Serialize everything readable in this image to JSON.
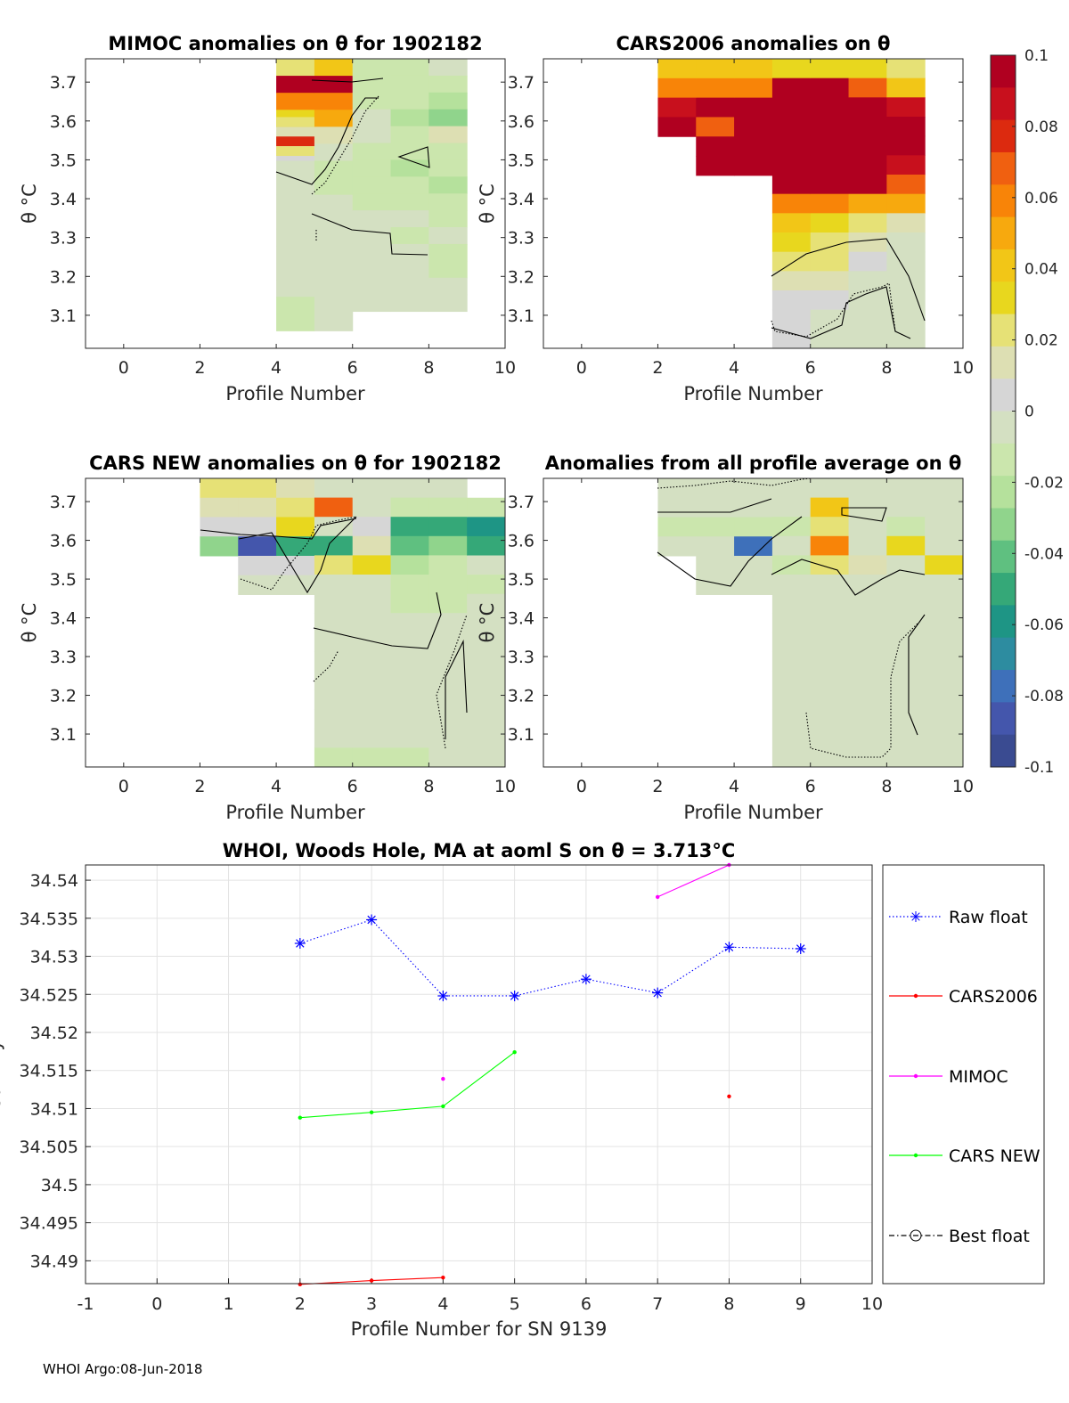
{
  "chart_data": [
    {
      "type": "heatmap",
      "title": "MIMOC anomalies on θ  for 1902182",
      "xlabel": "Profile Number",
      "ylabel": "θ °C",
      "xlim": [
        -1,
        10
      ],
      "ylim": [
        3.015,
        3.76
      ],
      "xticks": [
        "0",
        "2",
        "4",
        "6",
        "8",
        "10"
      ],
      "yticks": [
        "3.1",
        "3.2",
        "3.3",
        "3.4",
        "3.5",
        "3.6",
        "3.7"
      ],
      "columns": [
        {
          "x": 5,
          "bottom": 3.06,
          "top": 3.76,
          "values": [
            0.02,
            0.1,
            0.06,
            0.03,
            0.01,
            0.005,
            -0.005,
            -0.005,
            0.0,
            0.0,
            -0.005,
            -0.005,
            -0.005,
            -0.005,
            -0.01,
            -0.01
          ]
        },
        {
          "x": 6,
          "bottom": 3.06,
          "top": 3.76,
          "values": [
            0.04,
            0.1,
            0.06,
            0.05,
            0.01,
            0.0,
            -0.01,
            -0.01,
            -0.005,
            0.0,
            -0.005,
            0.0,
            -0.005,
            0.0,
            -0.005,
            -0.005
          ]
        },
        {
          "x": 7,
          "bottom": 3.11,
          "top": 3.76,
          "values": [
            -0.01,
            -0.01,
            -0.01,
            -0.005,
            0.0,
            -0.015,
            -0.015,
            -0.01,
            -0.01,
            -0.005,
            -0.005,
            -0.005,
            -0.005,
            -0.005,
            -0.005
          ]
        },
        {
          "x": 8,
          "bottom": 3.11,
          "top": 3.76,
          "values": [
            -0.015,
            -0.01,
            -0.01,
            -0.02,
            -0.015,
            -0.015,
            -0.02,
            -0.01,
            -0.01,
            -0.005,
            -0.01,
            -0.005,
            -0.005,
            -0.005,
            -0.005
          ]
        },
        {
          "x": 9,
          "bottom": 3.11,
          "top": 3.76,
          "values": [
            -0.005,
            -0.01,
            -0.02,
            -0.03,
            0.01,
            -0.015,
            -0.015,
            -0.02,
            -0.01,
            -0.01,
            -0.005,
            -0.01,
            -0.01,
            -0.005,
            -0.005
          ]
        }
      ],
      "extra_cells": [
        {
          "x": 4,
          "y": 3.535,
          "value": 0.08
        },
        {
          "x": 4,
          "y": 3.585,
          "value": 0.02
        },
        {
          "x": 4,
          "y": 3.51,
          "value": 0.02
        }
      ]
    },
    {
      "type": "heatmap",
      "title": "CARS2006 anomalies on θ",
      "xlabel": "Profile Number",
      "ylabel": "θ °C",
      "xlim": [
        -1,
        10
      ],
      "ylim": [
        3.015,
        3.76
      ],
      "xticks": [
        "0",
        "2",
        "4",
        "6",
        "8",
        "10"
      ],
      "yticks": [
        "3.1",
        "3.2",
        "3.3",
        "3.4",
        "3.5",
        "3.6",
        "3.7"
      ],
      "columns": [
        {
          "x": 3,
          "bottom": 3.56,
          "top": 3.76,
          "values": [
            0.045,
            0.06,
            0.085,
            0.1
          ]
        },
        {
          "x": 4,
          "bottom": 3.46,
          "top": 3.76,
          "values": [
            0.045,
            0.06,
            0.1,
            0.07,
            0.1,
            0.1
          ]
        },
        {
          "x": 5,
          "bottom": 3.46,
          "top": 3.76,
          "values": [
            0.04,
            0.06,
            0.1,
            0.1,
            0.1,
            0.1
          ]
        },
        {
          "x": 6,
          "bottom": 3.015,
          "top": 3.76,
          "values": [
            0.035,
            0.1,
            0.1,
            0.1,
            0.1,
            0.1,
            0.1,
            0.06,
            0.045,
            0.03,
            0.02,
            0.01,
            0.005,
            0.005,
            0.005
          ]
        },
        {
          "x": 7,
          "bottom": 3.015,
          "top": 3.76,
          "values": [
            0.035,
            0.1,
            0.1,
            0.1,
            0.1,
            0.1,
            0.1,
            0.06,
            0.035,
            0.025,
            0.02,
            0.01,
            0.005,
            0.0,
            0.0
          ]
        },
        {
          "x": 8,
          "bottom": 3.015,
          "top": 3.76,
          "values": [
            0.03,
            0.07,
            0.1,
            0.1,
            0.1,
            0.1,
            0.1,
            0.05,
            0.02,
            0.01,
            0.005,
            0.0,
            0.0,
            0.0,
            0.0
          ]
        },
        {
          "x": 9,
          "bottom": 3.015,
          "top": 3.76,
          "values": [
            0.02,
            0.04,
            0.09,
            0.1,
            0.1,
            0.09,
            0.07,
            0.05,
            0.01,
            0.0,
            0.0,
            0.0,
            0.0,
            0.0,
            0.0
          ]
        }
      ]
    },
    {
      "type": "heatmap",
      "title": "CARS NEW anomalies on θ for 1902182",
      "xlabel": "Profile Number",
      "ylabel": "θ °C",
      "xlim": [
        -1,
        10
      ],
      "ylim": [
        3.015,
        3.76
      ],
      "xticks": [
        "0",
        "2",
        "4",
        "6",
        "8",
        "10"
      ],
      "yticks": [
        "3.1",
        "3.2",
        "3.3",
        "3.4",
        "3.5",
        "3.6",
        "3.7"
      ],
      "columns": [
        {
          "x": 3,
          "bottom": 3.56,
          "top": 3.76,
          "values": [
            0.025,
            0.015,
            0.005,
            -0.03
          ]
        },
        {
          "x": 4,
          "bottom": 3.46,
          "top": 3.76,
          "values": [
            0.025,
            0.015,
            0.005,
            -0.09,
            0.005,
            0.0
          ]
        },
        {
          "x": 5,
          "bottom": 3.46,
          "top": 3.76,
          "values": [
            0.015,
            0.02,
            0.035,
            -0.05,
            0.005,
            0.0
          ]
        },
        {
          "x": 6,
          "bottom": 3.015,
          "top": 3.76,
          "values": [
            0.0,
            0.07,
            0.0,
            -0.05,
            0.02,
            0.0,
            -0.005,
            0.0,
            0.0,
            0.0,
            0.0,
            -0.005,
            0.0,
            -0.005,
            -0.01
          ]
        },
        {
          "x": 7,
          "bottom": 3.015,
          "top": 3.76,
          "values": [
            0.0,
            0.0,
            0.005,
            0.01,
            0.03,
            0.0,
            -0.005,
            0.0,
            0.0,
            0.0,
            0.0,
            0.0,
            0.0,
            0.0,
            -0.01
          ]
        },
        {
          "x": 8,
          "bottom": 3.015,
          "top": 3.76,
          "values": [
            0.0,
            -0.015,
            -0.05,
            -0.04,
            -0.02,
            -0.01,
            -0.01,
            -0.005,
            0.0,
            -0.005,
            0.0,
            -0.005,
            0.0,
            -0.005,
            -0.01
          ]
        },
        {
          "x": 9,
          "bottom": 3.015,
          "top": 3.76,
          "values": [
            0.0,
            -0.015,
            -0.05,
            -0.035,
            -0.01,
            -0.015,
            -0.01,
            -0.005,
            0.0,
            -0.005,
            -0.005,
            -0.005,
            -0.005,
            -0.005,
            -0.005
          ]
        },
        {
          "x": 10,
          "bottom": 3.015,
          "top": 3.71,
          "values": [
            -0.015,
            -0.06,
            -0.05,
            0.0,
            -0.01,
            -0.005,
            0.0,
            0.0,
            -0.005,
            -0.005,
            -0.005,
            -0.005,
            -0.005,
            -0.005
          ]
        }
      ]
    },
    {
      "type": "heatmap",
      "title": "Anomalies from all profile average on θ",
      "xlabel": "Profile Number",
      "ylabel": "θ °C",
      "xlim": [
        -1,
        10
      ],
      "ylim": [
        3.015,
        3.76
      ],
      "xticks": [
        "0",
        "2",
        "4",
        "6",
        "8",
        "10"
      ],
      "yticks": [
        "3.1",
        "3.2",
        "3.3",
        "3.4",
        "3.5",
        "3.6",
        "3.7"
      ],
      "columns": [
        {
          "x": 3,
          "bottom": 3.56,
          "top": 3.76,
          "values": [
            0.0,
            0.0,
            -0.015,
            0.0
          ]
        },
        {
          "x": 4,
          "bottom": 3.46,
          "top": 3.76,
          "values": [
            0.0,
            0.0,
            -0.015,
            0.0,
            0.0,
            0.0
          ]
        },
        {
          "x": 5,
          "bottom": 3.46,
          "top": 3.76,
          "values": [
            0.0,
            0.0,
            -0.015,
            -0.08,
            0.0,
            0.0
          ]
        },
        {
          "x": 6,
          "bottom": 3.015,
          "top": 3.76,
          "values": [
            0.0,
            0.0,
            -0.015,
            0.0,
            -0.01,
            0.0,
            0.0,
            0.0,
            0.0,
            0.0,
            0.0,
            0.0,
            0.0,
            0.0,
            0.0
          ]
        },
        {
          "x": 7,
          "bottom": 3.015,
          "top": 3.76,
          "values": [
            0.0,
            0.04,
            0.02,
            0.06,
            0.02,
            0.0,
            0.0,
            0.0,
            0.0,
            -0.005,
            0.0,
            0.0,
            0.0,
            0.0,
            0.0
          ]
        },
        {
          "x": 8,
          "bottom": 3.015,
          "top": 3.76,
          "values": [
            0.0,
            0.0,
            0.0,
            0.0,
            0.01,
            0.0,
            0.0,
            -0.005,
            0.0,
            0.0,
            0.0,
            0.0,
            0.0,
            0.0,
            0.0
          ]
        },
        {
          "x": 9,
          "bottom": 3.015,
          "top": 3.76,
          "values": [
            0.0,
            0.0,
            -0.01,
            0.03,
            0.0,
            0.0,
            0.0,
            0.0,
            0.0,
            0.0,
            0.0,
            0.0,
            0.0,
            0.0,
            0.0
          ]
        },
        {
          "x": 10,
          "bottom": 3.015,
          "top": 3.76,
          "values": [
            0.0,
            0.0,
            0.0,
            0.0,
            0.03,
            0.0,
            0.0,
            0.0,
            0.0,
            0.0,
            0.0,
            0.0,
            0.0,
            0.0,
            0.0
          ]
        }
      ]
    },
    {
      "type": "line",
      "title": "WHOI, Woods Hole, MA at aoml S on θ = 3.713°C",
      "xlabel": "Profile Number for SN 9139",
      "ylabel": "Salinity",
      "xlim": [
        -1,
        10
      ],
      "ylim": [
        34.487,
        34.542
      ],
      "xticks": [
        "-1",
        "0",
        "1",
        "2",
        "3",
        "4",
        "5",
        "6",
        "7",
        "8",
        "9",
        "10"
      ],
      "yticks": [
        "34.49",
        "34.495",
        "34.5",
        "34.505",
        "34.51",
        "34.515",
        "34.52",
        "34.525",
        "34.53",
        "34.535",
        "34.54"
      ],
      "grid": true,
      "legend": "outside-right",
      "series": [
        {
          "name": "Raw float",
          "color": "#0000ff",
          "style": "dotted",
          "marker": "asterisk",
          "x": [
            2,
            3,
            4,
            5,
            6,
            7,
            8,
            9
          ],
          "y": [
            34.5317,
            34.5348,
            34.5248,
            34.5248,
            34.527,
            34.5252,
            34.5312,
            34.531
          ]
        },
        {
          "name": "CARS2006",
          "color": "#ff0000",
          "style": "solid",
          "marker": "dot",
          "x": [
            2,
            3,
            4
          ],
          "y": [
            34.4869,
            34.4874,
            34.4878
          ],
          "extra_points": [
            {
              "x": 8,
              "y": 34.5116
            }
          ]
        },
        {
          "name": "MIMOC",
          "color": "#ff00ff",
          "style": "solid",
          "marker": "dot",
          "x": [
            7,
            8
          ],
          "y": [
            34.5378,
            34.542
          ],
          "extra_points": [
            {
              "x": 4,
              "y": 34.5139
            }
          ]
        },
        {
          "name": "CARS NEW",
          "color": "#00ff00",
          "style": "solid",
          "marker": "dot",
          "x": [
            2,
            3,
            4,
            5
          ],
          "y": [
            34.5088,
            34.5095,
            34.5103,
            34.5174
          ]
        },
        {
          "name": "Best float",
          "color": "#000000",
          "style": "dashdot",
          "marker": "circle",
          "x": [],
          "y": []
        }
      ]
    }
  ],
  "colorbar": {
    "min": -0.1,
    "max": 0.1,
    "ticks": [
      "0.1",
      "0.08",
      "0.06",
      "0.04",
      "0.02",
      "0",
      "-0.02",
      "-0.04",
      "-0.06",
      "-0.08",
      "-0.1"
    ],
    "tick_values": [
      0.1,
      0.08,
      0.06,
      0.04,
      0.02,
      0,
      -0.02,
      -0.04,
      -0.06,
      -0.08,
      -0.1
    ],
    "colors_top_to_bottom": [
      "#b00020",
      "#c8101d",
      "#dc2a0f",
      "#f06010",
      "#f88408",
      "#f7a90e",
      "#f2c617",
      "#e8d71e",
      "#e6e176",
      "#dddfb3",
      "#d6d6d6",
      "#d4e0c2",
      "#cbe6ad",
      "#b5e19c",
      "#90d48c",
      "#5fc080",
      "#35a878",
      "#1e9585",
      "#2d8ca0",
      "#3e70ba",
      "#4456ac",
      "#3a4b91"
    ]
  },
  "footer": "WHOI Argo:08-Jun-2018"
}
